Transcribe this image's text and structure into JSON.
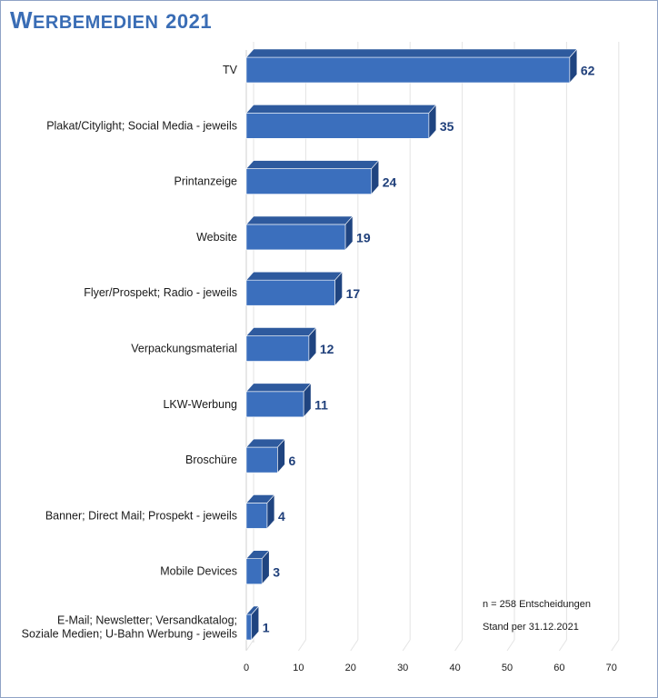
{
  "title": "Werbemedien 2021",
  "notes": {
    "n": "n = 258 Entscheidungen",
    "stand": "Stand per 31.12.2021"
  },
  "colors": {
    "bar_front": "#3b6fbd",
    "bar_top": "#2e5a9e",
    "bar_side": "#1f4480",
    "value_label": "#1f3f7a",
    "title": "#3a6db5"
  },
  "chart_data": {
    "type": "bar",
    "orientation": "horizontal",
    "categories": [
      "TV",
      "Plakat/Citylight; Social Media - jeweils",
      "Printanzeige",
      "Website",
      "Flyer/Prospekt; Radio - jeweils",
      "Verpackungsmaterial",
      "LKW-Werbung",
      "Broschüre",
      "Banner; Direct Mail; Prospekt - jeweils",
      "Mobile Devices",
      "E-Mail; Newsletter; Versandkatalog;\nSoziale Medien;  U-Bahn Werbung - jeweils"
    ],
    "values": [
      62,
      35,
      24,
      19,
      17,
      12,
      11,
      6,
      4,
      3,
      1
    ],
    "xlim": [
      0,
      70
    ],
    "xticks": [
      0,
      10,
      20,
      30,
      40,
      50,
      60,
      70
    ],
    "grid": true
  }
}
